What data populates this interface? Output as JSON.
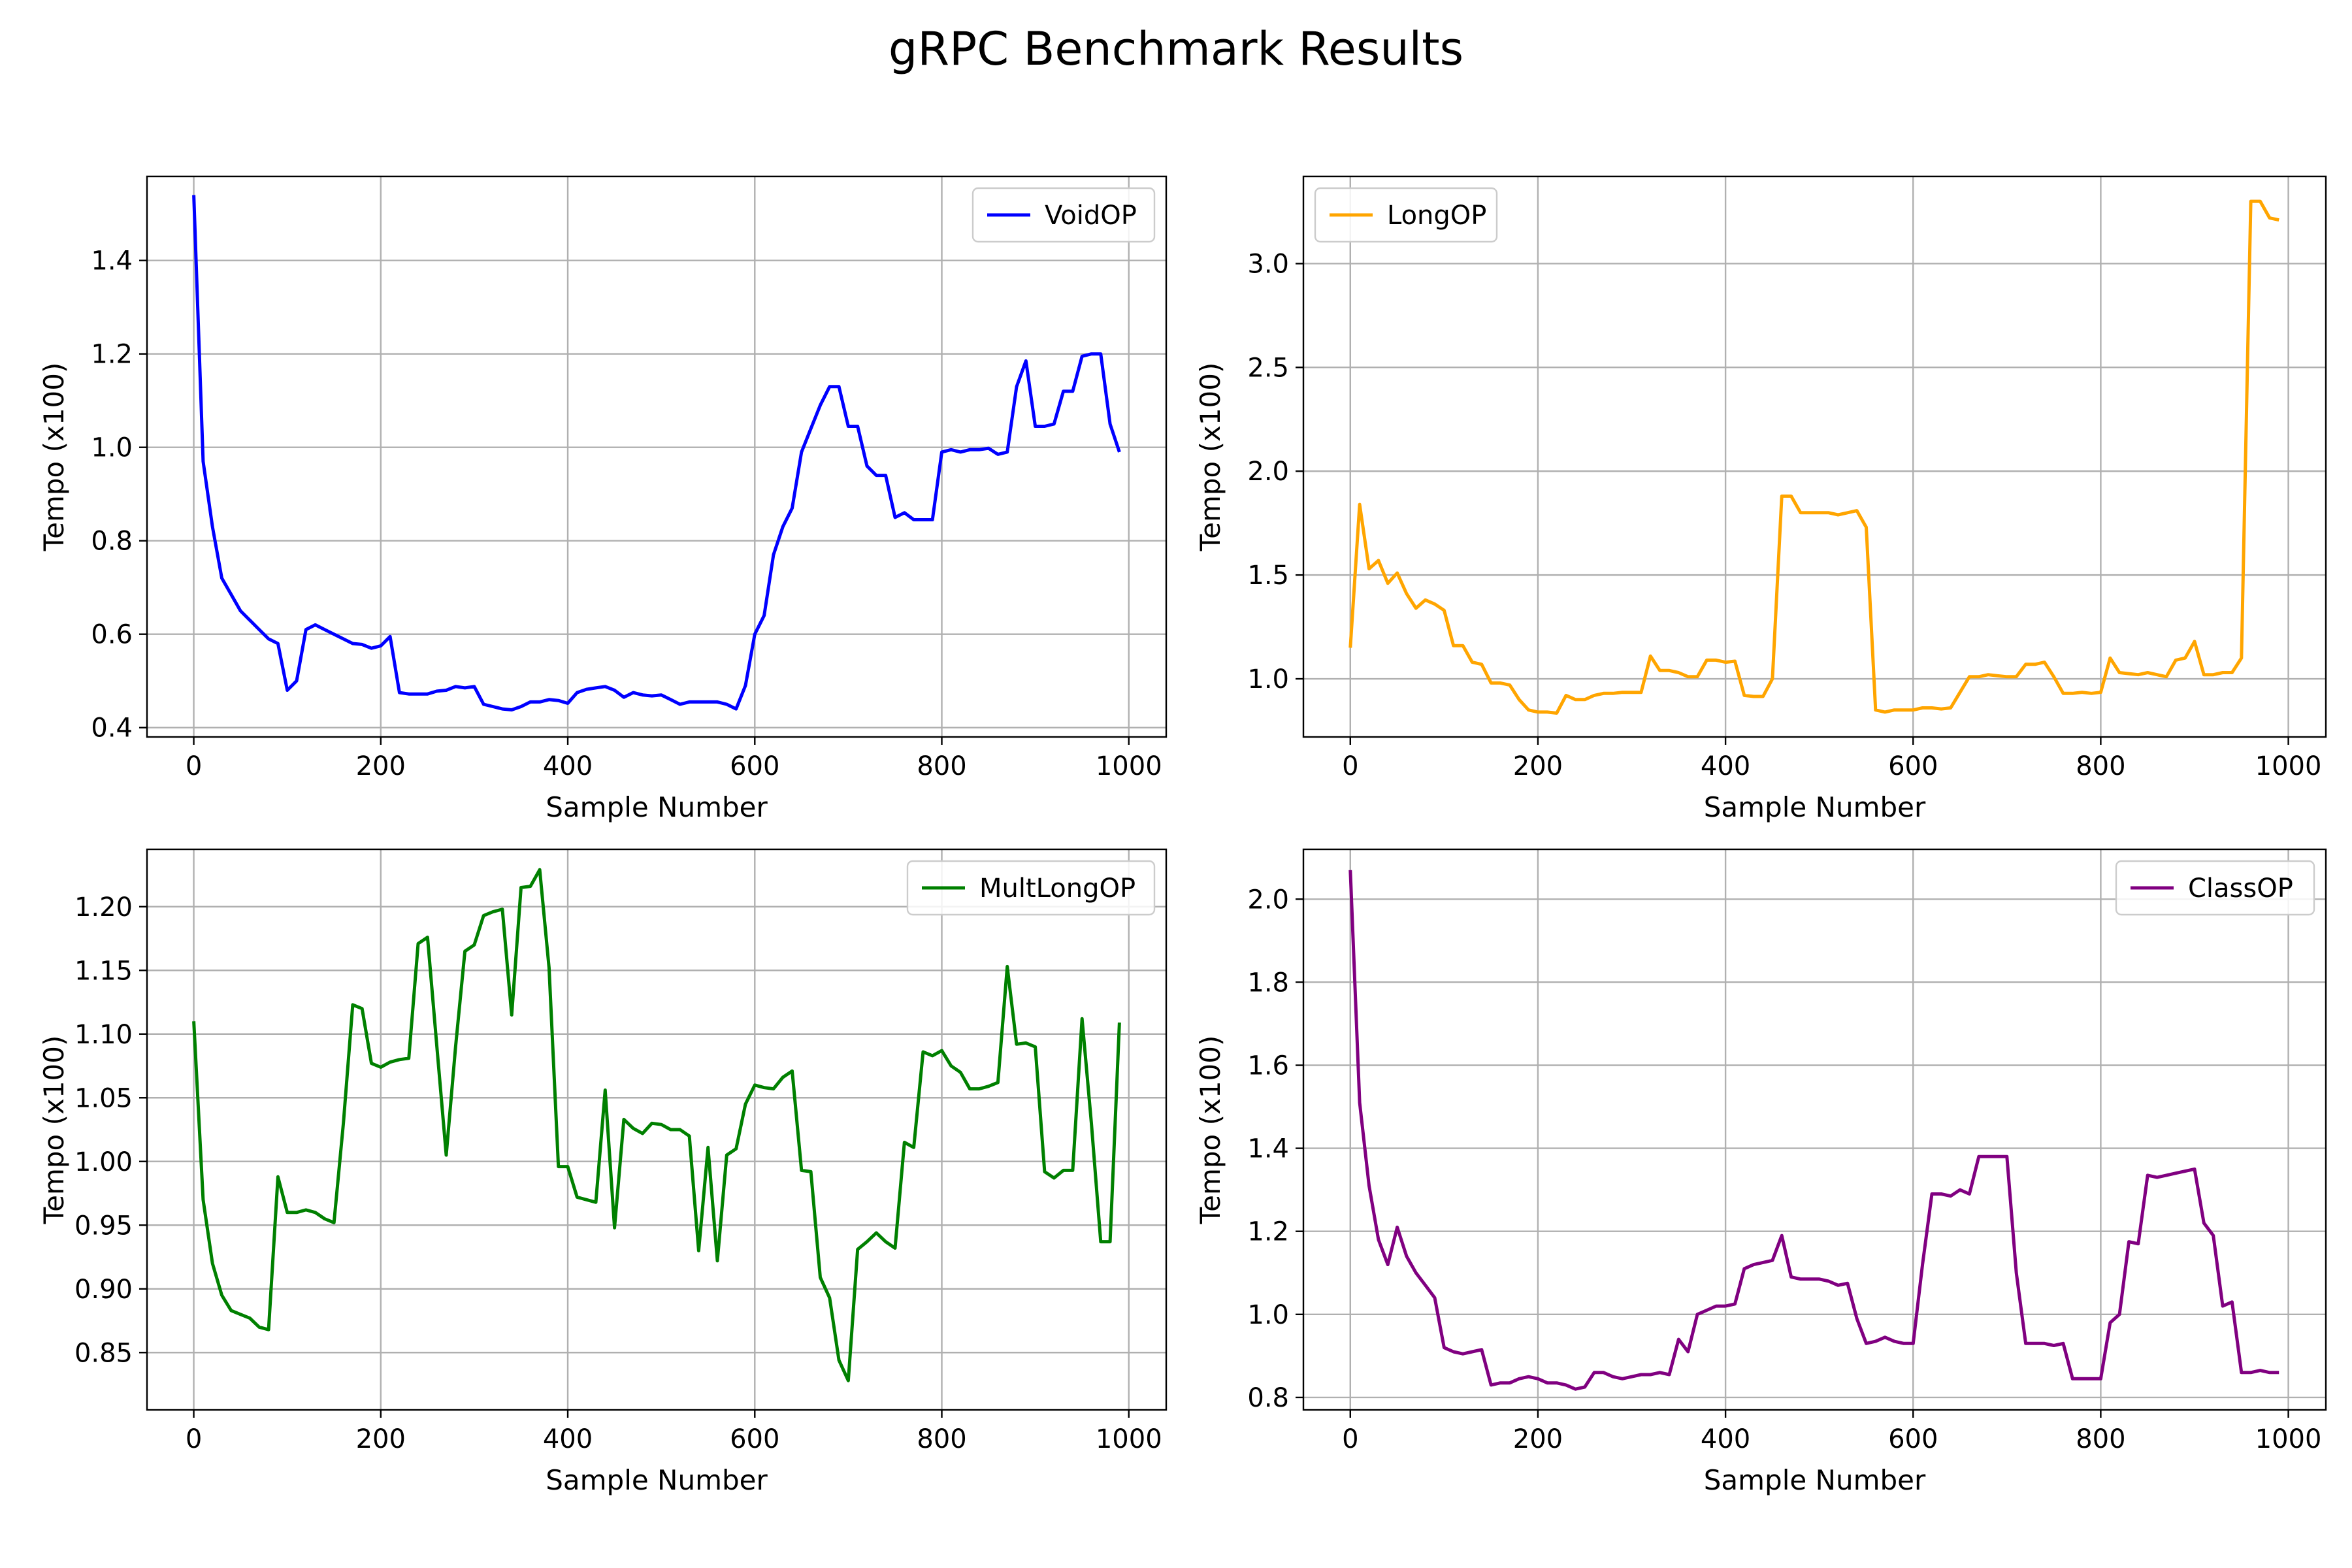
{
  "title": "gRPC Benchmark Results",
  "charts": [
    {
      "type": "line",
      "title": "",
      "xlabel": "Sample Number",
      "ylabel": "Tempo (x100)",
      "xlim": [
        -50,
        1040
      ],
      "ylim": [
        0.38,
        1.58
      ],
      "xticks": [
        0,
        200,
        400,
        600,
        800,
        1000
      ],
      "yticks": [
        0.4,
        0.6,
        0.8,
        1.0,
        1.2,
        1.4
      ],
      "ytick_labels": [
        "0.4",
        "0.6",
        "0.8",
        "1.0",
        "1.2",
        "1.4"
      ],
      "grid": true,
      "legend": "upper-right",
      "series": [
        {
          "name": "VoidOP",
          "color": "#0000ff",
          "x": [
            0,
            10,
            20,
            30,
            40,
            50,
            60,
            70,
            80,
            90,
            100,
            110,
            120,
            130,
            140,
            150,
            160,
            170,
            180,
            190,
            200,
            210,
            220,
            230,
            240,
            250,
            260,
            270,
            280,
            290,
            300,
            310,
            320,
            330,
            340,
            350,
            360,
            370,
            380,
            390,
            400,
            410,
            420,
            430,
            440,
            450,
            460,
            470,
            480,
            490,
            500,
            510,
            520,
            530,
            540,
            550,
            560,
            570,
            580,
            590,
            600,
            610,
            620,
            630,
            640,
            650,
            660,
            670,
            680,
            690,
            700,
            710,
            720,
            730,
            740,
            750,
            760,
            770,
            780,
            790,
            800,
            810,
            820,
            830,
            840,
            850,
            860,
            870,
            880,
            890,
            900,
            910,
            920,
            930,
            940,
            950,
            960,
            970,
            980,
            990
          ],
          "y": [
            1.54,
            0.97,
            0.83,
            0.72,
            0.685,
            0.65,
            0.63,
            0.61,
            0.59,
            0.58,
            0.48,
            0.5,
            0.61,
            0.62,
            0.61,
            0.6,
            0.59,
            0.58,
            0.578,
            0.57,
            0.575,
            0.595,
            0.475,
            0.472,
            0.472,
            0.472,
            0.478,
            0.48,
            0.488,
            0.485,
            0.488,
            0.45,
            0.445,
            0.44,
            0.438,
            0.445,
            0.455,
            0.455,
            0.46,
            0.458,
            0.452,
            0.475,
            0.482,
            0.485,
            0.488,
            0.48,
            0.465,
            0.475,
            0.47,
            0.468,
            0.47,
            0.46,
            0.45,
            0.455,
            0.455,
            0.455,
            0.455,
            0.45,
            0.44,
            0.49,
            0.6,
            0.64,
            0.77,
            0.83,
            0.87,
            0.99,
            1.04,
            1.09,
            1.13,
            1.13,
            1.045,
            1.045,
            0.96,
            0.94,
            0.94,
            0.85,
            0.86,
            0.845,
            0.845,
            0.845,
            0.99,
            0.995,
            0.99,
            0.995,
            0.995,
            0.998,
            0.985,
            0.99,
            1.13,
            1.185,
            1.045,
            1.045,
            1.05,
            1.12,
            1.12,
            1.195,
            1.2,
            1.2,
            1.05,
            0.99
          ]
        }
      ]
    },
    {
      "type": "line",
      "title": "",
      "xlabel": "Sample Number",
      "ylabel": "Tempo (x100)",
      "xlim": [
        -50,
        1040
      ],
      "ylim": [
        0.72,
        3.42
      ],
      "xticks": [
        0,
        200,
        400,
        600,
        800,
        1000
      ],
      "yticks": [
        1.0,
        1.5,
        2.0,
        2.5,
        3.0
      ],
      "ytick_labels": [
        "1.0",
        "1.5",
        "2.0",
        "2.5",
        "3.0"
      ],
      "grid": true,
      "legend": "upper-left",
      "series": [
        {
          "name": "LongOP",
          "color": "#ffa500",
          "x": [
            0,
            10,
            20,
            30,
            40,
            50,
            60,
            70,
            80,
            90,
            100,
            110,
            120,
            130,
            140,
            150,
            160,
            170,
            180,
            190,
            200,
            210,
            220,
            230,
            240,
            250,
            260,
            270,
            280,
            290,
            300,
            310,
            320,
            330,
            340,
            350,
            360,
            370,
            380,
            390,
            400,
            410,
            420,
            430,
            440,
            450,
            460,
            470,
            480,
            490,
            500,
            510,
            520,
            530,
            540,
            550,
            560,
            570,
            580,
            590,
            600,
            610,
            620,
            630,
            640,
            650,
            660,
            670,
            680,
            690,
            700,
            710,
            720,
            730,
            740,
            750,
            760,
            770,
            780,
            790,
            800,
            810,
            820,
            830,
            840,
            850,
            860,
            870,
            880,
            890,
            900,
            910,
            920,
            930,
            940,
            950,
            960,
            970,
            980,
            990
          ],
          "y": [
            1.15,
            1.84,
            1.53,
            1.57,
            1.46,
            1.51,
            1.41,
            1.34,
            1.38,
            1.36,
            1.33,
            1.16,
            1.16,
            1.08,
            1.07,
            0.98,
            0.98,
            0.97,
            0.9,
            0.85,
            0.84,
            0.84,
            0.835,
            0.92,
            0.9,
            0.9,
            0.92,
            0.93,
            0.93,
            0.935,
            0.935,
            0.935,
            1.11,
            1.04,
            1.04,
            1.03,
            1.01,
            1.01,
            1.09,
            1.09,
            1.08,
            1.085,
            0.92,
            0.915,
            0.915,
            1.0,
            1.88,
            1.88,
            1.8,
            1.8,
            1.8,
            1.8,
            1.79,
            1.8,
            1.81,
            1.73,
            0.85,
            0.84,
            0.85,
            0.85,
            0.85,
            0.86,
            0.86,
            0.855,
            0.86,
            0.935,
            1.01,
            1.01,
            1.02,
            1.015,
            1.01,
            1.01,
            1.07,
            1.07,
            1.08,
            1.01,
            0.93,
            0.93,
            0.935,
            0.93,
            0.935,
            1.1,
            1.03,
            1.025,
            1.02,
            1.03,
            1.02,
            1.01,
            1.09,
            1.1,
            1.18,
            1.02,
            1.02,
            1.03,
            1.03,
            1.1,
            3.3,
            3.3,
            3.22,
            3.21
          ]
        }
      ]
    },
    {
      "type": "line",
      "title": "",
      "xlabel": "Sample Number",
      "ylabel": "Tempo (x100)",
      "xlim": [
        -50,
        1040
      ],
      "ylim": [
        0.805,
        1.245
      ],
      "xticks": [
        0,
        200,
        400,
        600,
        800,
        1000
      ],
      "yticks": [
        0.85,
        0.9,
        0.95,
        1.0,
        1.05,
        1.1,
        1.15,
        1.2
      ],
      "ytick_labels": [
        "0.85",
        "0.90",
        "0.95",
        "1.00",
        "1.05",
        "1.10",
        "1.15",
        "1.20"
      ],
      "grid": true,
      "legend": "upper-right",
      "series": [
        {
          "name": "MultLongOP",
          "color": "#008000",
          "x": [
            0,
            10,
            20,
            30,
            40,
            50,
            60,
            70,
            80,
            90,
            100,
            110,
            120,
            130,
            140,
            150,
            160,
            170,
            180,
            190,
            200,
            210,
            220,
            230,
            240,
            250,
            260,
            270,
            280,
            290,
            300,
            310,
            320,
            330,
            340,
            350,
            360,
            370,
            380,
            390,
            400,
            410,
            420,
            430,
            440,
            450,
            460,
            470,
            480,
            490,
            500,
            510,
            520,
            530,
            540,
            550,
            560,
            570,
            580,
            590,
            600,
            610,
            620,
            630,
            640,
            650,
            660,
            670,
            680,
            690,
            700,
            710,
            720,
            730,
            740,
            750,
            760,
            770,
            780,
            790,
            800,
            810,
            820,
            830,
            840,
            850,
            860,
            870,
            880,
            890,
            900,
            910,
            920,
            930,
            940,
            950,
            960,
            970,
            980,
            990
          ],
          "y": [
            1.11,
            0.97,
            0.92,
            0.895,
            0.883,
            0.88,
            0.877,
            0.87,
            0.868,
            0.988,
            0.96,
            0.96,
            0.962,
            0.96,
            0.955,
            0.952,
            1.03,
            1.123,
            1.12,
            1.077,
            1.074,
            1.078,
            1.08,
            1.081,
            1.171,
            1.176,
            1.09,
            1.005,
            1.09,
            1.165,
            1.17,
            1.193,
            1.196,
            1.198,
            1.115,
            1.215,
            1.216,
            1.229,
            1.152,
            0.996,
            0.996,
            0.972,
            0.97,
            0.968,
            1.056,
            0.948,
            1.033,
            1.026,
            1.022,
            1.03,
            1.029,
            1.025,
            1.025,
            1.02,
            0.93,
            1.011,
            0.922,
            1.005,
            1.01,
            1.045,
            1.06,
            1.058,
            1.057,
            1.066,
            1.071,
            0.993,
            0.992,
            0.909,
            0.893,
            0.844,
            0.828,
            0.931,
            0.937,
            0.944,
            0.937,
            0.932,
            1.015,
            1.011,
            1.086,
            1.083,
            1.087,
            1.075,
            1.07,
            1.057,
            1.057,
            1.059,
            1.062,
            1.153,
            1.092,
            1.093,
            1.09,
            0.992,
            0.987,
            0.993,
            0.993,
            1.112,
            1.03,
            0.937,
            0.937,
            1.109
          ]
        }
      ]
    },
    {
      "type": "line",
      "title": "",
      "xlabel": "Sample Number",
      "ylabel": "Tempo (x100)",
      "xlim": [
        -50,
        1040
      ],
      "ylim": [
        0.77,
        2.12
      ],
      "xticks": [
        0,
        200,
        400,
        600,
        800,
        1000
      ],
      "yticks": [
        0.8,
        1.0,
        1.2,
        1.4,
        1.6,
        1.8,
        2.0
      ],
      "ytick_labels": [
        "0.8",
        "1.0",
        "1.2",
        "1.4",
        "1.6",
        "1.8",
        "2.0"
      ],
      "grid": true,
      "legend": "upper-right",
      "series": [
        {
          "name": "ClassOP",
          "color": "#800080",
          "x": [
            0,
            10,
            20,
            30,
            40,
            50,
            60,
            70,
            80,
            90,
            100,
            110,
            120,
            130,
            140,
            150,
            160,
            170,
            180,
            190,
            200,
            210,
            220,
            230,
            240,
            250,
            260,
            270,
            280,
            290,
            300,
            310,
            320,
            330,
            340,
            350,
            360,
            370,
            380,
            390,
            400,
            410,
            420,
            430,
            440,
            450,
            460,
            470,
            480,
            490,
            500,
            510,
            520,
            530,
            540,
            550,
            560,
            570,
            580,
            590,
            600,
            610,
            620,
            630,
            640,
            650,
            660,
            670,
            680,
            690,
            700,
            710,
            720,
            730,
            740,
            750,
            760,
            770,
            780,
            790,
            800,
            810,
            820,
            830,
            840,
            850,
            860,
            870,
            880,
            890,
            900,
            910,
            920,
            930,
            940,
            950,
            960,
            970,
            980,
            990
          ],
          "y": [
            2.07,
            1.51,
            1.31,
            1.18,
            1.12,
            1.21,
            1.14,
            1.1,
            1.07,
            1.04,
            0.92,
            0.91,
            0.905,
            0.91,
            0.915,
            0.83,
            0.835,
            0.835,
            0.845,
            0.85,
            0.845,
            0.835,
            0.835,
            0.83,
            0.82,
            0.825,
            0.86,
            0.86,
            0.85,
            0.845,
            0.85,
            0.855,
            0.855,
            0.86,
            0.855,
            0.94,
            0.91,
            1.0,
            1.01,
            1.02,
            1.02,
            1.025,
            1.11,
            1.12,
            1.125,
            1.13,
            1.19,
            1.09,
            1.085,
            1.085,
            1.085,
            1.08,
            1.07,
            1.075,
            0.99,
            0.93,
            0.935,
            0.945,
            0.935,
            0.93,
            0.93,
            1.12,
            1.29,
            1.29,
            1.285,
            1.3,
            1.29,
            1.38,
            1.38,
            1.38,
            1.38,
            1.1,
            0.93,
            0.93,
            0.93,
            0.925,
            0.93,
            0.845,
            0.845,
            0.845,
            0.845,
            0.98,
            1.0,
            1.175,
            1.17,
            1.335,
            1.33,
            1.335,
            1.34,
            1.345,
            1.35,
            1.22,
            1.19,
            1.02,
            1.03,
            0.86,
            0.86,
            0.865,
            0.86,
            0.86
          ]
        }
      ]
    }
  ]
}
